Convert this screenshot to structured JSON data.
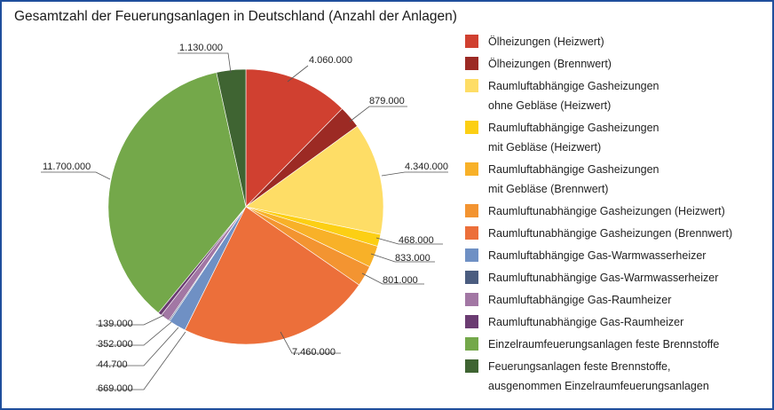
{
  "chart_data": {
    "type": "pie",
    "title": "Gesamtzahl der Feuerungsanlagen in Deutschland (Anzahl der Anlagen)",
    "slices": [
      {
        "name": "Ölheizungen (Heizwert)",
        "value": 4060000,
        "label": "4.060.000",
        "color": "#d04030"
      },
      {
        "name": "Ölheizungen (Brennwert)",
        "value": 879000,
        "label": "879.000",
        "color": "#9c2a24"
      },
      {
        "name": "Raumluftabhängige Gasheizungen\nohne Gebläse (Heizwert)",
        "value": 4340000,
        "label": "4.340.000",
        "color": "#fedd66"
      },
      {
        "name": "Raumluftabhängige Gasheizungen\nmit Gebläse (Heizwert)",
        "value": 468000,
        "label": "468.000",
        "color": "#fccf14"
      },
      {
        "name": "Raumluftabhängige Gasheizungen\nmit Gebläse (Brennwert)",
        "value": 833000,
        "label": "833.000",
        "color": "#f8b128"
      },
      {
        "name": "Raumluftunabhängige Gasheizungen  (Heizwert)",
        "value": 801000,
        "label": "801.000",
        "color": "#f39431"
      },
      {
        "name": "Raumluftunabhängige Gasheizungen  (Brennwert)",
        "value": 7460000,
        "label": "7.460.000",
        "color": "#ec6f3a"
      },
      {
        "name": "Raumluftabhängige Gas-Warmwasserheizer",
        "value": 669000,
        "label": "669.000",
        "color": "#6f90c4"
      },
      {
        "name": "Raumluftunabhängige Gas-Warmwasserheizer",
        "value": 44700,
        "label": "44.700",
        "color": "#4b5d80"
      },
      {
        "name": "Raumluftabhängige Gas-Raumheizer",
        "value": 352000,
        "label": "352.000",
        "color": "#a277a4"
      },
      {
        "name": "Raumluftunabhängige Gas-Raumheizer",
        "value": 139000,
        "label": "139.000",
        "color": "#6b3c72"
      },
      {
        "name": "Einzelraumfeuerungsanlagen feste Brennstoffe",
        "value": 11700000,
        "label": "11.700.000",
        "color": "#74a84a"
      },
      {
        "name": "Feuerungsanlagen feste Brennstoffe,\nausgenommen Einzelraumfeuerungsanlagen",
        "value": 1130000,
        "label": "1.130.000",
        "color": "#3f6432"
      }
    ]
  }
}
